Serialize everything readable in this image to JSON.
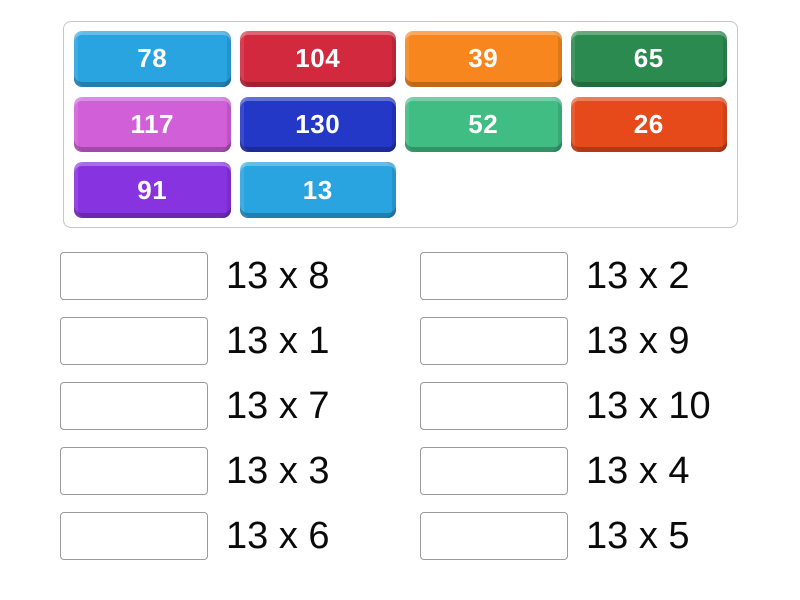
{
  "bank": {
    "tiles": [
      {
        "value": "78",
        "color": "#2aa3e1"
      },
      {
        "value": "104",
        "color": "#d2293e"
      },
      {
        "value": "39",
        "color": "#f6861d"
      },
      {
        "value": "65",
        "color": "#2b8a4f"
      },
      {
        "value": "117",
        "color": "#d15fd8"
      },
      {
        "value": "130",
        "color": "#2438c8"
      },
      {
        "value": "52",
        "color": "#3fbd83"
      },
      {
        "value": "26",
        "color": "#e64a1a"
      },
      {
        "value": "91",
        "color": "#8833e0"
      },
      {
        "value": "13",
        "color": "#2aa3e1"
      }
    ]
  },
  "pairs": {
    "left": [
      "13 x 8",
      "13 x 1",
      "13 x 7",
      "13 x 3",
      "13 x 6"
    ],
    "right": [
      "13 x 2",
      "13 x 9",
      "13 x 10",
      "13 x 4",
      "13 x 5"
    ]
  }
}
